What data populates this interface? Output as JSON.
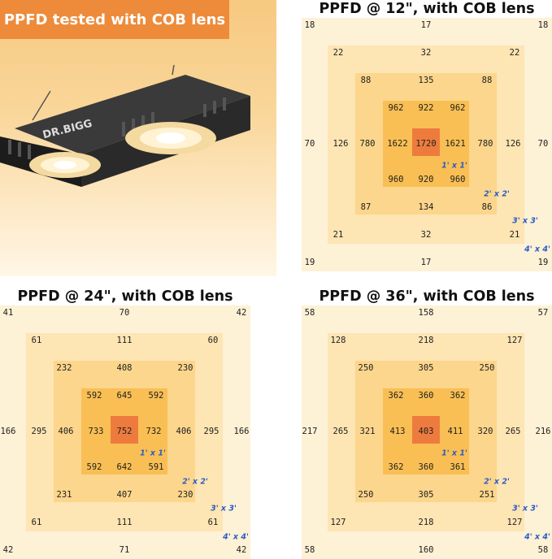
{
  "banner": "PPFD tested with COB lens",
  "brand": "DR.BIGG",
  "size_labels": [
    "1' x 1'",
    "2' x 2'",
    "3' x 3'",
    "4' x 4'"
  ],
  "colors": {
    "ring4": "#fdf1d6",
    "ring3": "#fde5b4",
    "ring2": "#fcd68c",
    "ring1": "#f9bf54",
    "center": "#ee7b3e",
    "label": "#2b5cc4",
    "banner": "#ed8b3b"
  },
  "panels": [
    {
      "id": "p12",
      "title": "PPFD @ 12\", with COB lens",
      "ring4": [
        "18",
        "17",
        "18",
        "70",
        "70",
        "19",
        "17",
        "19"
      ],
      "ring3": [
        "22",
        "32",
        "22",
        "126",
        "126",
        "21",
        "32",
        "21"
      ],
      "ring2": [
        "88",
        "135",
        "88",
        "780",
        "780",
        "87",
        "134",
        "86"
      ],
      "ring1": [
        "962",
        "922",
        "962",
        "1622",
        "1621",
        "960",
        "920",
        "960"
      ],
      "center": "1720"
    },
    {
      "id": "p24",
      "title": "PPFD @ 24\", with COB lens",
      "ring4": [
        "41",
        "70",
        "42",
        "166",
        "166",
        "42",
        "71",
        "42"
      ],
      "ring3": [
        "61",
        "111",
        "60",
        "295",
        "295",
        "61",
        "111",
        "61"
      ],
      "ring2": [
        "232",
        "408",
        "230",
        "406",
        "406",
        "231",
        "407",
        "230"
      ],
      "ring1": [
        "592",
        "645",
        "592",
        "733",
        "732",
        "592",
        "642",
        "591"
      ],
      "center": "752"
    },
    {
      "id": "p36",
      "title": "PPFD @ 36\", with COB lens",
      "ring4": [
        "58",
        "158",
        "57",
        "217",
        "216",
        "58",
        "160",
        "58"
      ],
      "ring3": [
        "128",
        "218",
        "127",
        "265",
        "265",
        "127",
        "218",
        "127"
      ],
      "ring2": [
        "250",
        "305",
        "250",
        "321",
        "320",
        "250",
        "305",
        "251"
      ],
      "ring1": [
        "362",
        "360",
        "362",
        "413",
        "411",
        "362",
        "360",
        "361"
      ],
      "center": "403"
    }
  ]
}
